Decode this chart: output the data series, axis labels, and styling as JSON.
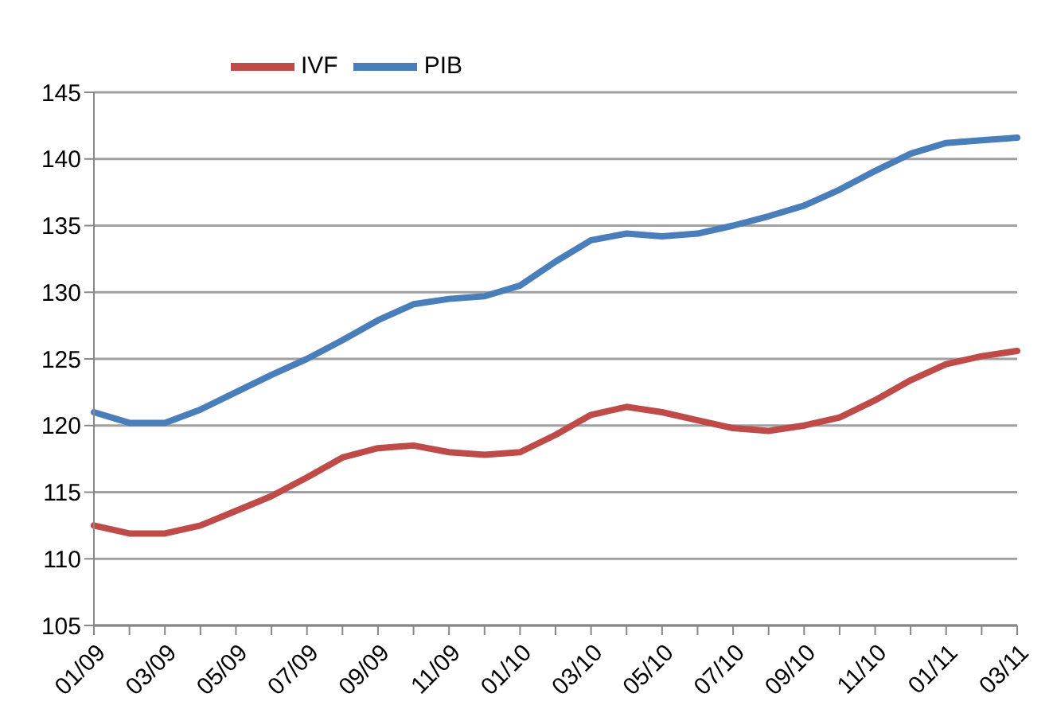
{
  "chart_data": {
    "type": "line",
    "categories": [
      "01/09",
      null,
      "03/09",
      null,
      "05/09",
      null,
      "07/09",
      null,
      "09/09",
      null,
      "11/09",
      null,
      "01/10",
      null,
      "03/10",
      null,
      "05/10",
      null,
      "07/10",
      null,
      "09/10",
      null,
      "11/10",
      null,
      "01/11",
      null,
      "03/11"
    ],
    "series": [
      {
        "name": "PIB",
        "color": "#4a7ebb",
        "values": [
          121.0,
          120.2,
          120.2,
          121.2,
          122.5,
          123.8,
          125.0,
          126.4,
          127.9,
          129.1,
          129.5,
          129.7,
          130.5,
          132.3,
          133.9,
          134.4,
          134.2,
          134.4,
          135.0,
          135.7,
          136.5,
          137.7,
          139.1,
          140.4,
          141.2,
          141.4,
          141.6
        ]
      },
      {
        "name": "IVF",
        "color": "#be4b48",
        "values": [
          112.5,
          111.9,
          111.9,
          112.5,
          113.6,
          114.7,
          116.1,
          117.6,
          118.3,
          118.5,
          118.0,
          117.8,
          118.0,
          119.3,
          120.8,
          121.4,
          121.0,
          120.4,
          119.8,
          119.6,
          120.0,
          120.6,
          121.9,
          123.4,
          124.6,
          125.2,
          125.6
        ]
      }
    ],
    "ylim": [
      105,
      145
    ],
    "yticks": [
      105,
      110,
      115,
      120,
      125,
      130,
      135,
      140,
      145
    ],
    "grid": "y",
    "legend": "top",
    "marker": "none",
    "line_style": "solid"
  }
}
